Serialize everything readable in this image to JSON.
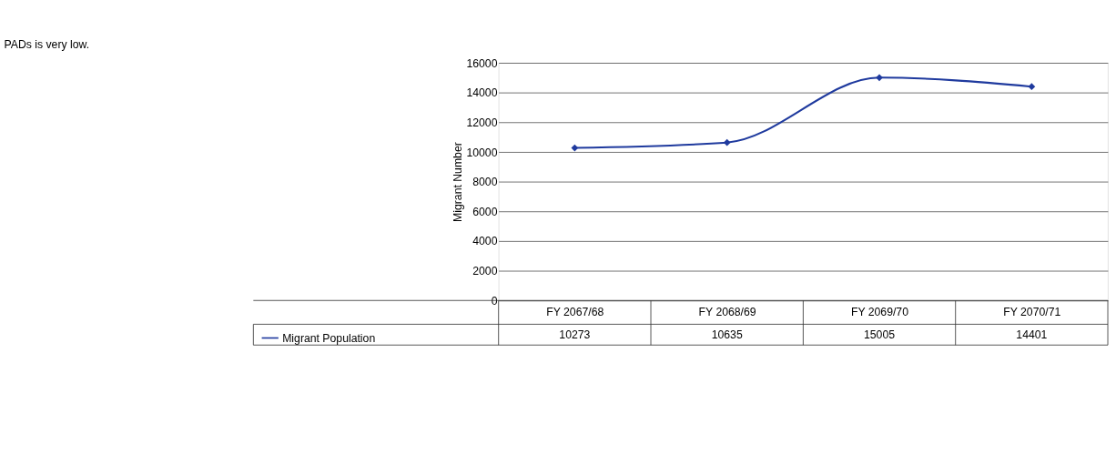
{
  "chart_data": {
    "type": "line",
    "ylabel": "Migrant Number",
    "annotations": [
      "PADs is very low."
    ],
    "categories": [
      "FY 2067/68",
      "FY 2068/69",
      "FY  2069/70",
      "FY 2070/71"
    ],
    "series": [
      {
        "name": "Migrant Population",
        "color": "#1f3a9e",
        "values": [
          10273,
          10635,
          15005,
          14401
        ]
      }
    ],
    "ylim": [
      0,
      16000
    ],
    "yticks": [
      0,
      2000,
      4000,
      6000,
      8000,
      10000,
      12000,
      14000,
      16000
    ],
    "grid": "y",
    "legend": "bottom left",
    "marker": "diamond",
    "line_style": "solid",
    "data_labels": true
  }
}
